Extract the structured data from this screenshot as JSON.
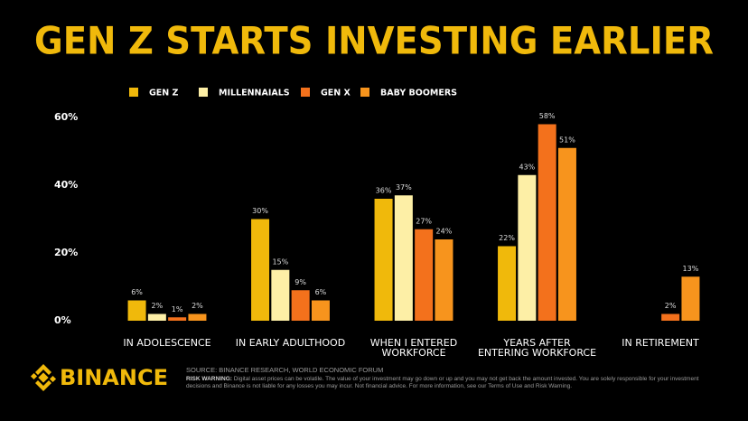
{
  "chart_data": {
    "type": "bar",
    "title": "GEN Z STARTS INVESTING EARLIER",
    "categories": [
      [
        "IN ADOLESCENCE"
      ],
      [
        "IN EARLY ADULTHOOD"
      ],
      [
        "WHEN I ENTERED",
        "WORKFORCE"
      ],
      [
        "YEARS AFTER",
        "ENTERING WORKFORCE"
      ],
      [
        "IN RETIREMENT"
      ]
    ],
    "series": [
      {
        "name": "GEN Z",
        "color": "#f0b90b",
        "values": [
          6,
          30,
          36,
          22,
          null
        ],
        "value_labels": [
          "6%",
          "30%",
          "36%",
          "22%",
          null
        ]
      },
      {
        "name": "MILLENNAIALS",
        "color": "#fdefa6",
        "values": [
          2,
          15,
          37,
          43,
          null
        ],
        "value_labels": [
          "2%",
          "15%",
          "37%",
          "43%",
          null
        ]
      },
      {
        "name": "GEN X",
        "color": "#f3711c",
        "values": [
          1,
          9,
          27,
          58,
          2
        ],
        "value_labels": [
          "1%",
          "9%",
          "27%",
          "58%",
          "2%"
        ]
      },
      {
        "name": "BABY BOOMERS",
        "color": "#f7941d",
        "values": [
          2,
          6,
          24,
          51,
          13
        ],
        "value_labels": [
          "2%",
          "6%",
          "24%",
          "51%",
          "13%"
        ]
      }
    ],
    "ylim": [
      0,
      60
    ],
    "yticks": [
      {
        "value": 0,
        "label": "0%"
      },
      {
        "value": 20,
        "label": "20%"
      },
      {
        "value": 40,
        "label": "40%"
      },
      {
        "value": 60,
        "label": "60%"
      }
    ],
    "grid": false
  },
  "logo_text": "BINANCE",
  "source": "SOURCE: BINANCE RESEARCH, WORLD ECONOMIC FORUM",
  "risk_label": "RISK WARNING:",
  "risk_text": "Digital asset prices can be volatile. The value of your investment may go down or up and you may not get back the amount invested. You are solely responsible for your investment decisions and Binance is not liable for any losses you may incur. Not financial advice. For more information, see our Terms of Use and Risk Warning."
}
